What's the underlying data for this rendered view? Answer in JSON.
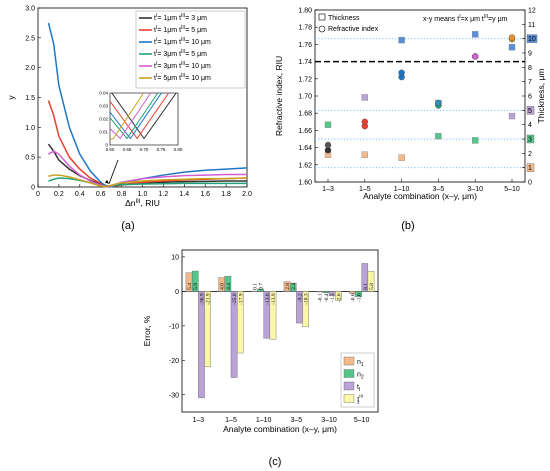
{
  "chart_data": [
    {
      "type": "line",
      "panel_label": "(a)",
      "xlabel": "Δn",
      "xlabel_sup": "III",
      "xlabel_unit": ", RIU",
      "ylabel": "y",
      "xlim": [
        0,
        2.0
      ],
      "ylim": [
        0,
        3.0
      ],
      "xticks": [
        "0",
        "0.2",
        "0.4",
        "0.6",
        "0.8",
        "1.0",
        "1.2",
        "1.4",
        "1.6",
        "1.8",
        "2.0"
      ],
      "yticks": [
        "0",
        "0.5",
        "1.0",
        "1.5",
        "2.0",
        "2.5",
        "3.0"
      ],
      "inset": {
        "xlim": [
          0.6,
          0.8
        ],
        "ylim": [
          0,
          0.04
        ],
        "xticks": [
          "0.60",
          "0.65",
          "0.70",
          "0.75",
          "0.80"
        ],
        "yticks": [
          "0",
          "0.01",
          "0.02",
          "0.03",
          "0.04"
        ]
      },
      "series": [
        {
          "name": "t",
          "sub": "I",
          "pre": "= 1μm t",
          "mid": "= 3 μm",
          "color": "#333333",
          "min_x": 0.7,
          "x": [
            0.1,
            0.15,
            0.2,
            0.3,
            0.4,
            0.5,
            0.6,
            0.65,
            0.7,
            0.75,
            0.8,
            1.0,
            1.2,
            1.4,
            1.6,
            1.8,
            2.0
          ],
          "y": [
            0.72,
            0.6,
            0.45,
            0.3,
            0.19,
            0.11,
            0.05,
            0.025,
            0.005,
            0.02,
            0.035,
            0.065,
            0.08,
            0.09,
            0.095,
            0.1,
            0.1
          ]
        },
        {
          "name": "t",
          "sub": "I",
          "pre": "= 1μm t",
          "mid": "= 5 μm",
          "color": "#e8402f",
          "min_x": 0.68,
          "x": [
            0.1,
            0.15,
            0.2,
            0.3,
            0.4,
            0.5,
            0.6,
            0.65,
            0.7,
            0.75,
            0.8,
            1.0,
            1.2,
            1.4,
            1.6,
            1.8,
            2.0
          ],
          "y": [
            1.45,
            1.2,
            0.85,
            0.5,
            0.3,
            0.15,
            0.06,
            0.02,
            0.005,
            0.02,
            0.04,
            0.08,
            0.1,
            0.12,
            0.13,
            0.14,
            0.15
          ]
        },
        {
          "name": "t",
          "sub": "I",
          "pre": "= 1μm t",
          "mid": "= 10 μm",
          "color": "#1f77c4",
          "min_x": 0.66,
          "x": [
            0.1,
            0.15,
            0.2,
            0.3,
            0.4,
            0.5,
            0.6,
            0.65,
            0.7,
            0.75,
            0.8,
            1.0,
            1.2,
            1.4,
            1.6,
            1.8,
            2.0
          ],
          "y": [
            2.75,
            2.4,
            1.7,
            1.0,
            0.55,
            0.27,
            0.08,
            0.015,
            0.005,
            0.03,
            0.06,
            0.14,
            0.2,
            0.25,
            0.28,
            0.3,
            0.32
          ]
        },
        {
          "name": "t",
          "sub": "I",
          "pre": "= 3μm t",
          "mid": "= 5 μm",
          "color": "#22a17a",
          "min_x": 0.65,
          "x": [
            0.1,
            0.15,
            0.2,
            0.3,
            0.4,
            0.5,
            0.6,
            0.65,
            0.7,
            0.75,
            0.8,
            1.0,
            1.2,
            1.4,
            1.6,
            1.8,
            2.0
          ],
          "y": [
            0.1,
            0.13,
            0.15,
            0.14,
            0.11,
            0.07,
            0.025,
            0.008,
            0.015,
            0.03,
            0.04,
            0.05,
            0.055,
            0.06,
            0.06,
            0.06,
            0.06
          ]
        },
        {
          "name": "t",
          "sub": "I",
          "pre": "= 3μm t",
          "mid": "= 10 μm",
          "color": "#d35fd3",
          "min_x": 0.63,
          "x": [
            0.1,
            0.15,
            0.2,
            0.3,
            0.4,
            0.5,
            0.6,
            0.65,
            0.7,
            0.75,
            0.8,
            1.0,
            1.2,
            1.4,
            1.6,
            1.8,
            2.0
          ],
          "y": [
            0.55,
            0.6,
            0.55,
            0.35,
            0.2,
            0.1,
            0.03,
            0.006,
            0.02,
            0.05,
            0.08,
            0.14,
            0.17,
            0.19,
            0.2,
            0.21,
            0.21
          ]
        },
        {
          "name": "t",
          "sub": "I",
          "pre": "= 5μm t",
          "mid": "= 10 μm",
          "color": "#c8a21c",
          "min_x": 0.61,
          "x": [
            0.1,
            0.15,
            0.2,
            0.3,
            0.4,
            0.5,
            0.6,
            0.65,
            0.7,
            0.75,
            0.8,
            1.0,
            1.2,
            1.4,
            1.6,
            1.8,
            2.0
          ],
          "y": [
            0.18,
            0.2,
            0.2,
            0.17,
            0.12,
            0.07,
            0.015,
            0.008,
            0.03,
            0.05,
            0.07,
            0.1,
            0.12,
            0.13,
            0.14,
            0.14,
            0.15
          ]
        }
      ]
    },
    {
      "type": "scatter",
      "panel_label": "(b)",
      "xlabel": "Analyte combination (x–y, μm)",
      "ylabel": "Refractive index, RIU",
      "ylabel_right": "Thickness, μm",
      "ylim": [
        1.6,
        1.8
      ],
      "ylim_right": [
        0,
        12
      ],
      "categories": [
        "1–3",
        "1–5",
        "1–10",
        "3–5",
        "3–10",
        "5–10"
      ],
      "yticks": [
        "1.60",
        "1.62",
        "1.64",
        "1.66",
        "1.68",
        "1.70",
        "1.72",
        "1.74",
        "1.76",
        "1.78",
        "1.80"
      ],
      "yticks_right": [
        "0",
        "1",
        "2",
        "3",
        "4",
        "5",
        "6",
        "7",
        "8",
        "9",
        "10",
        "11",
        "12"
      ],
      "boxed_right_ticks": [
        {
          "label": "1",
          "color": "#f2b98a"
        },
        {
          "label": "3",
          "color": "#55c58a"
        },
        {
          "label": "5",
          "color": "#b9a2d6"
        },
        {
          "label": "10",
          "color": "#5a8fd6"
        }
      ],
      "dotted_lines_thickness": [
        1,
        3,
        5,
        10
      ],
      "dashed_line_ri": 1.74,
      "legend": {
        "thickness": "Thickness",
        "ri": "Refractive index",
        "note_pre": "x-y means t",
        "note_a": "=x μm t",
        "note_b": "=y μm"
      },
      "circles": [
        {
          "cat": 0,
          "values": [
            1.637,
            1.643
          ],
          "colors": [
            "#333333",
            "#555555"
          ]
        },
        {
          "cat": 1,
          "values": [
            1.665,
            1.67
          ],
          "colors": [
            "#e8402f",
            "#e8402f"
          ]
        },
        {
          "cat": 2,
          "values": [
            1.722,
            1.727
          ],
          "colors": [
            "#1f77c4",
            "#1f77c4"
          ]
        },
        {
          "cat": 3,
          "values": [
            1.689,
            1.692
          ],
          "colors": [
            "#22a17a",
            "#2d8fbf"
          ]
        },
        {
          "cat": 4,
          "values": [
            1.746,
            1.746
          ],
          "colors": [
            "#d35fd3",
            "#d35fd3"
          ]
        },
        {
          "cat": 5,
          "values": [
            1.766,
            1.768
          ],
          "colors": [
            "#c8a21c",
            "#e8902f"
          ]
        }
      ],
      "squares": [
        {
          "cat": 0,
          "values": [
            1.9,
            4.0
          ],
          "colors": [
            "#f2b98a",
            "#55c58a"
          ]
        },
        {
          "cat": 1,
          "values": [
            1.9,
            5.9
          ],
          "colors": [
            "#f2b98a",
            "#b9a2d6"
          ]
        },
        {
          "cat": 2,
          "values": [
            1.7,
            9.9
          ],
          "colors": [
            "#f2b98a",
            "#5a8fd6"
          ]
        },
        {
          "cat": 3,
          "values": [
            3.2,
            5.5
          ],
          "colors": [
            "#55c58a",
            "#b9a2d6"
          ]
        },
        {
          "cat": 4,
          "values": [
            2.9,
            10.3
          ],
          "colors": [
            "#55c58a",
            "#5a8fd6"
          ]
        },
        {
          "cat": 5,
          "values": [
            4.6,
            9.4
          ],
          "colors": [
            "#b9a2d6",
            "#5a8fd6"
          ]
        }
      ]
    },
    {
      "type": "bar",
      "panel_label": "(c)",
      "xlabel": "Analyte combination (x–y, μm)",
      "ylabel": "Error, %",
      "ylim": [
        -35,
        12
      ],
      "yticks": [
        "-30",
        "-20",
        "-10",
        "0",
        "10"
      ],
      "categories": [
        "1–3",
        "1–5",
        "1–10",
        "3–5",
        "3–10",
        "5–10"
      ],
      "series": [
        {
          "name": "n",
          "sub": "1",
          "sup": "",
          "color": "#f2b98a",
          "values": [
            5.4,
            4.0,
            0.1,
            2.8,
            -0.1,
            -0.6
          ]
        },
        {
          "name": "n",
          "sub": "2",
          "sup": "",
          "color": "#55c58a",
          "values": [
            5.9,
            4.4,
            0.7,
            2.4,
            -0.4,
            -1.6
          ]
        },
        {
          "name": "t",
          "sub": "I",
          "sup": "",
          "color": "#b9a2d6",
          "values": [
            -30.9,
            -25.0,
            -13.6,
            -9.2,
            -1.3,
            8.1
          ]
        },
        {
          "name": "t",
          "sub": "2",
          "sup": "III",
          "color": "#fbf7a8",
          "values": [
            -21.9,
            -17.9,
            -13.9,
            -10.3,
            -2.6,
            5.8
          ]
        }
      ],
      "labels": [
        [
          "5.4",
          "5.9",
          "-30.9",
          "-21.9"
        ],
        [
          "4.0",
          "4.4",
          "-25.0",
          "-17.9"
        ],
        [
          "0.1",
          "0.7",
          "-13.6",
          "-13.9"
        ],
        [
          "2.8",
          "2.4",
          "-9.2",
          "-10.3"
        ],
        [
          "-0.1",
          "-0.4",
          "-1.3",
          "-2.6"
        ],
        [
          "-0.6",
          "-1.6",
          "8.1",
          "5.8"
        ]
      ]
    }
  ]
}
